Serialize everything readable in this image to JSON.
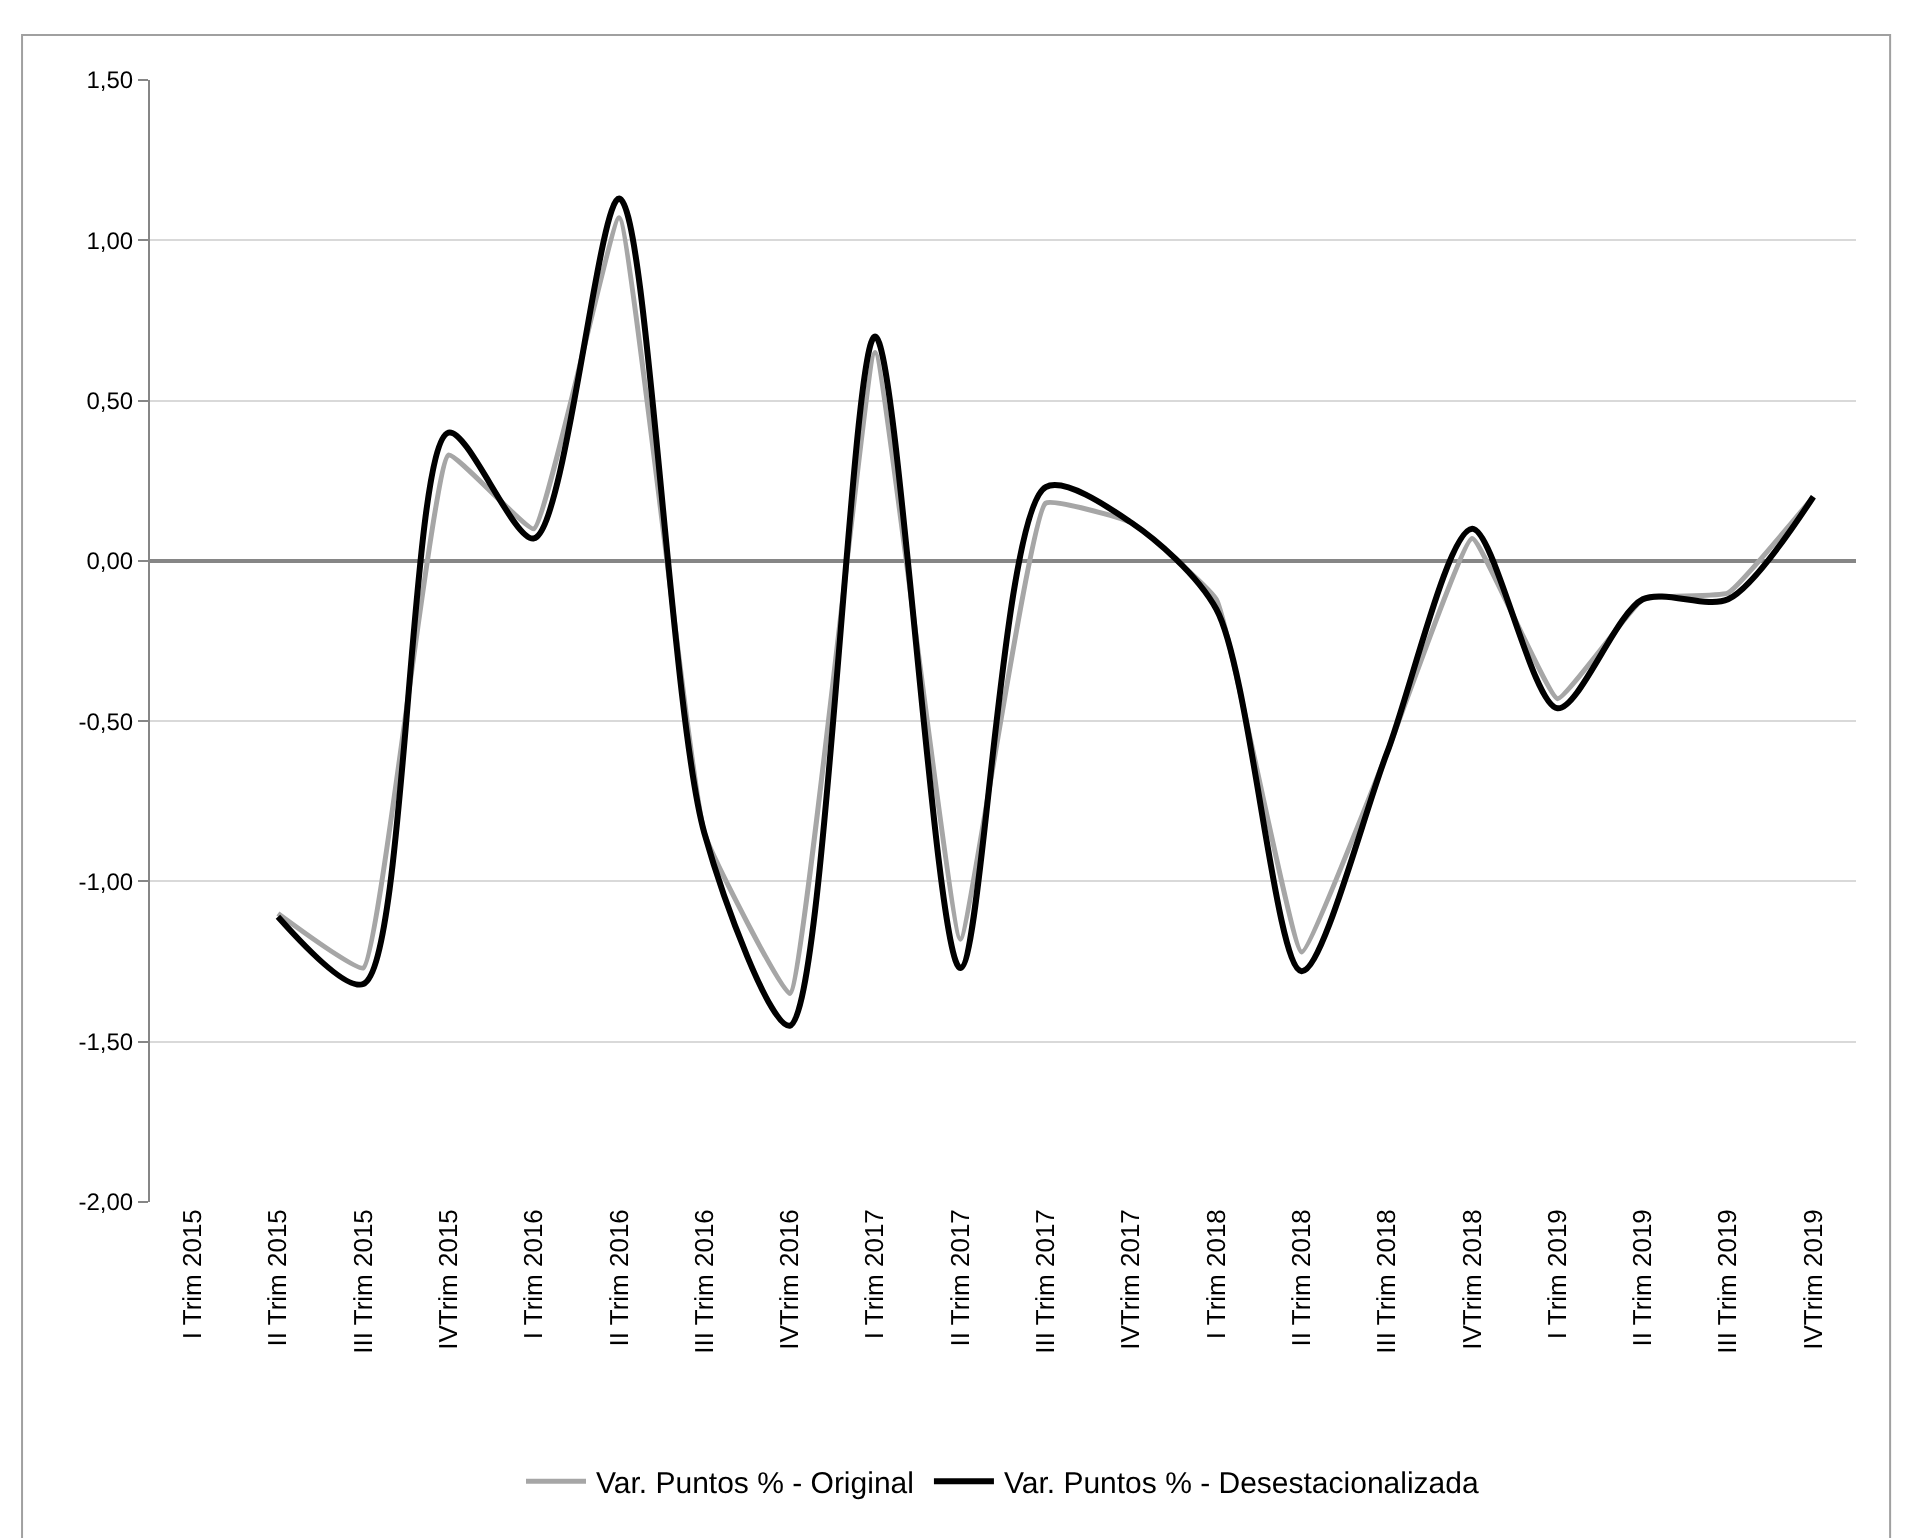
{
  "chart_data": {
    "type": "line",
    "categories": [
      "I Trim 2015",
      "II Trim 2015",
      "III Trim 2015",
      "IVTrim 2015",
      "I Trim 2016",
      "II Trim 2016",
      "III Trim 2016",
      "IVTrim 2016",
      "I Trim 2017",
      "II Trim 2017",
      "III Trim 2017",
      "IVTrim 2017",
      "I Trim 2018",
      "II Trim 2018",
      "III Trim 2018",
      "IVTrim 2018",
      "I Trim 2019",
      "II Trim 2019",
      "III Trim 2019",
      "IVTrim 2019"
    ],
    "series": [
      {
        "name": "Var. Puntos % - Original",
        "color": "#a6a6a6",
        "values": [
          null,
          -1.1,
          -1.27,
          0.33,
          0.1,
          1.07,
          -0.85,
          -1.35,
          0.65,
          -1.18,
          0.18,
          0.12,
          -0.12,
          -1.22,
          -0.6,
          0.07,
          -0.43,
          -0.12,
          -0.1,
          0.2
        ]
      },
      {
        "name": "Var. Puntos % - Desestacionalizada",
        "color": "#000000",
        "values": [
          null,
          -1.11,
          -1.32,
          0.4,
          0.07,
          1.13,
          -0.85,
          -1.45,
          0.7,
          -1.27,
          0.23,
          0.12,
          -0.15,
          -1.28,
          -0.6,
          0.1,
          -0.46,
          -0.12,
          -0.12,
          0.2
        ]
      }
    ],
    "ylim": [
      -2.0,
      1.5
    ],
    "yticks": [
      {
        "value": -2.0,
        "label": "-2,00"
      },
      {
        "value": -1.5,
        "label": "-1,50"
      },
      {
        "value": -1.0,
        "label": "-1,00"
      },
      {
        "value": -0.5,
        "label": "-0,50"
      },
      {
        "value": 0.0,
        "label": "0,00"
      },
      {
        "value": 0.5,
        "label": "0,50"
      },
      {
        "value": 1.0,
        "label": "1,00"
      },
      {
        "value": 1.5,
        "label": "1,50"
      }
    ],
    "grid": "y",
    "legend": "bottom",
    "marker": "none",
    "line_style": "solid"
  }
}
